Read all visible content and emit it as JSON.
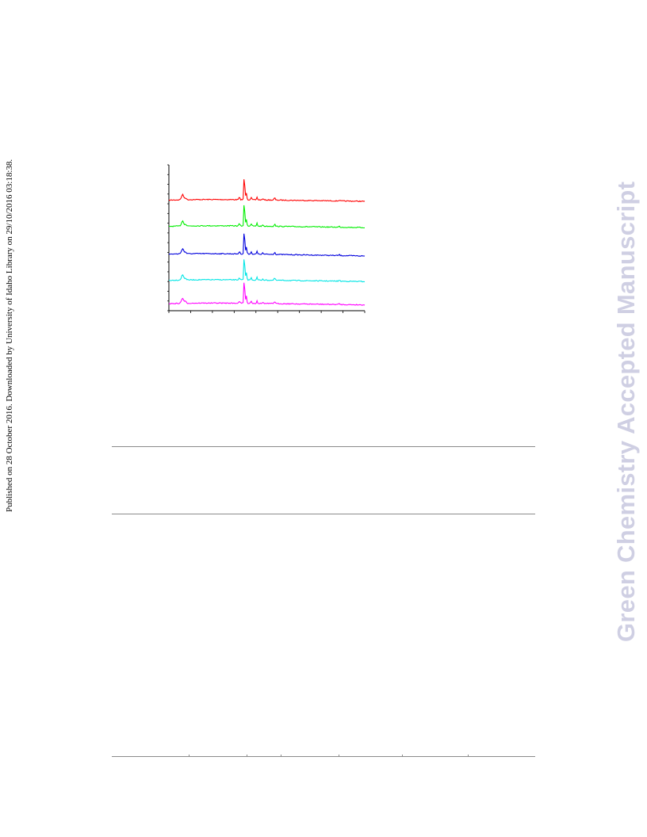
{
  "side_note": "Published on 28 October 2016. Downloaded by University of Idaho Library on 29/10/2016 03:18:38.",
  "watermark": "Green Chemistry Accepted Manuscript",
  "chart_data": {
    "type": "line",
    "title": "",
    "xlabel": "",
    "ylabel": "",
    "x_ticks_count": 10,
    "y_ticks_count": 16,
    "grid": false,
    "legend": "none",
    "series": [
      {
        "color": "#ff0000",
        "baseline_rel": 0.23,
        "drift": 0.02
      },
      {
        "color": "#00ee00",
        "baseline_rel": 0.41,
        "drift": 0.02
      },
      {
        "color": "#0000dd",
        "baseline_rel": 0.6,
        "drift": 0.025
      },
      {
        "color": "#00e5e5",
        "baseline_rel": 0.78,
        "drift": 0.02
      },
      {
        "color": "#ff00ff",
        "baseline_rel": 0.94,
        "drift": 0.02
      }
    ],
    "peaks": [
      {
        "pos": 0.07,
        "height": 0.035,
        "width": 0.008
      },
      {
        "pos": 0.085,
        "height": 0.012,
        "width": 0.005
      },
      {
        "pos": 0.36,
        "height": 0.015,
        "width": 0.004
      },
      {
        "pos": 0.385,
        "height": 0.19,
        "width": 0.003
      },
      {
        "pos": 0.395,
        "height": 0.05,
        "width": 0.004
      },
      {
        "pos": 0.42,
        "height": 0.015,
        "width": 0.004
      },
      {
        "pos": 0.45,
        "height": 0.02,
        "width": 0.003
      },
      {
        "pos": 0.48,
        "height": 0.01,
        "width": 0.003
      },
      {
        "pos": 0.54,
        "height": 0.015,
        "width": 0.004
      },
      {
        "pos": 0.87,
        "height": 0.006,
        "width": 0.004
      }
    ]
  },
  "table": {
    "header_cells": [],
    "body_rows": []
  }
}
